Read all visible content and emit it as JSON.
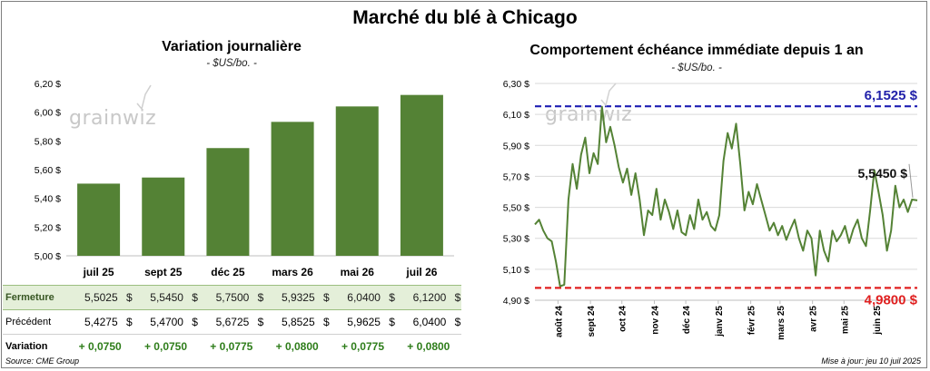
{
  "title": "Marché du blé à Chicago",
  "left_panel": {
    "title": "Variation journalière",
    "subtitle": "- $US/bo. -",
    "watermark": "grainwiz"
  },
  "right_panel": {
    "title": "Comportement échéance immédiate depuis 1 an",
    "subtitle": "- $US/bo. -",
    "watermark": "grainwiz",
    "high_label": "6,1525 $",
    "low_label": "4,9800 $",
    "last_label": "5,5450 $"
  },
  "table": {
    "labels": [
      "Fermeture",
      "Précédent",
      "Variation"
    ],
    "currency": "$",
    "fermeture": [
      "5,5025",
      "5,5450",
      "5,7500",
      "5,9325",
      "6,0400",
      "6,1200"
    ],
    "precedent": [
      "5,4275",
      "5,4700",
      "5,6725",
      "5,8525",
      "5,9625",
      "6,0400"
    ],
    "variation": [
      "+ 0,0750",
      "+ 0,0750",
      "+ 0,0775",
      "+ 0,0800",
      "+ 0,0775",
      "+ 0,0800"
    ]
  },
  "footer": {
    "source": "Source: CME Group",
    "updated": "Mise à jour: jeu 10 juil 2025"
  },
  "colors": {
    "bar": "#548235",
    "line": "#548235",
    "high_line": "#1f1fb4",
    "low_line": "#e02020",
    "high_text": "#2222aa",
    "low_text": "#e02020"
  },
  "chart_data": [
    {
      "type": "bar",
      "title": "Variation journalière",
      "subtitle": "- $US/bo. -",
      "categories": [
        "juil 25",
        "sept 25",
        "déc 25",
        "mars 26",
        "mai 26",
        "juil 26"
      ],
      "values": [
        5.5025,
        5.545,
        5.75,
        5.9325,
        6.04,
        6.12
      ],
      "ylim": [
        5.0,
        6.2
      ],
      "yticks": [
        5.0,
        5.2,
        5.4,
        5.6,
        5.8,
        6.0,
        6.2
      ],
      "ytick_labels": [
        "5,00 $",
        "5,20 $",
        "5,40 $",
        "5,60 $",
        "5,80 $",
        "6,00 $",
        "6,20 $"
      ],
      "grid": false
    },
    {
      "type": "line",
      "title": "Comportement échéance immédiate depuis 1 an",
      "subtitle": "- $US/bo. -",
      "ylim": [
        4.9,
        6.3
      ],
      "yticks": [
        4.9,
        5.1,
        5.3,
        5.5,
        5.7,
        5.9,
        6.1,
        6.3
      ],
      "ytick_labels": [
        "4,90 $",
        "5,10 $",
        "5,30 $",
        "5,50 $",
        "5,70 $",
        "5,90 $",
        "6,10 $",
        "6,30 $"
      ],
      "xlim": [
        "2024-07-10",
        "2025-07-10"
      ],
      "xticks": [
        "2024-08-01",
        "2024-09-01",
        "2024-10-01",
        "2024-11-01",
        "2024-12-01",
        "2025-01-01",
        "2025-02-01",
        "2025-03-01",
        "2025-04-01",
        "2025-05-01",
        "2025-06-01"
      ],
      "xtick_labels": [
        "août 24",
        "sept 24",
        "oct 24",
        "nov 24",
        "déc 24",
        "janv 25",
        "févr 25",
        "mars 25",
        "avr 25",
        "mai 25",
        "juin 25"
      ],
      "grid": "horizontal",
      "high": 6.1525,
      "low": 4.98,
      "last": 5.545,
      "x": [
        "2024-07-10",
        "2024-07-14",
        "2024-07-18",
        "2024-07-22",
        "2024-07-26",
        "2024-07-30",
        "2024-08-03",
        "2024-08-07",
        "2024-08-11",
        "2024-08-15",
        "2024-08-19",
        "2024-08-23",
        "2024-08-27",
        "2024-08-31",
        "2024-09-04",
        "2024-09-08",
        "2024-09-12",
        "2024-09-16",
        "2024-09-20",
        "2024-09-24",
        "2024-09-28",
        "2024-10-02",
        "2024-10-06",
        "2024-10-10",
        "2024-10-14",
        "2024-10-18",
        "2024-10-22",
        "2024-10-26",
        "2024-10-30",
        "2024-11-03",
        "2024-11-07",
        "2024-11-11",
        "2024-11-15",
        "2024-11-19",
        "2024-11-23",
        "2024-11-27",
        "2024-12-01",
        "2024-12-05",
        "2024-12-09",
        "2024-12-13",
        "2024-12-17",
        "2024-12-21",
        "2024-12-25",
        "2024-12-29",
        "2025-01-02",
        "2025-01-06",
        "2025-01-10",
        "2025-01-14",
        "2025-01-18",
        "2025-01-22",
        "2025-01-26",
        "2025-01-30",
        "2025-02-03",
        "2025-02-07",
        "2025-02-11",
        "2025-02-15",
        "2025-02-19",
        "2025-02-23",
        "2025-02-27",
        "2025-03-03",
        "2025-03-07",
        "2025-03-11",
        "2025-03-15",
        "2025-03-19",
        "2025-03-23",
        "2025-03-27",
        "2025-03-31",
        "2025-04-04",
        "2025-04-08",
        "2025-04-12",
        "2025-04-16",
        "2025-04-20",
        "2025-04-24",
        "2025-04-28",
        "2025-05-02",
        "2025-05-06",
        "2025-05-10",
        "2025-05-14",
        "2025-05-18",
        "2025-05-22",
        "2025-05-26",
        "2025-05-30",
        "2025-06-03",
        "2025-06-07",
        "2025-06-11",
        "2025-06-15",
        "2025-06-19",
        "2025-06-23",
        "2025-06-27",
        "2025-07-01",
        "2025-07-05",
        "2025-07-10"
      ],
      "y": [
        5.39,
        5.42,
        5.35,
        5.3,
        5.28,
        5.15,
        4.99,
        5.0,
        5.55,
        5.78,
        5.62,
        5.84,
        5.95,
        5.72,
        5.85,
        5.78,
        6.15,
        5.92,
        6.02,
        5.9,
        5.76,
        5.66,
        5.75,
        5.58,
        5.72,
        5.55,
        5.32,
        5.48,
        5.45,
        5.62,
        5.42,
        5.55,
        5.47,
        5.36,
        5.48,
        5.34,
        5.32,
        5.45,
        5.36,
        5.55,
        5.42,
        5.47,
        5.38,
        5.35,
        5.45,
        5.8,
        5.98,
        5.88,
        6.04,
        5.78,
        5.48,
        5.6,
        5.52,
        5.65,
        5.55,
        5.45,
        5.35,
        5.4,
        5.32,
        5.38,
        5.29,
        5.36,
        5.42,
        5.3,
        5.22,
        5.35,
        5.3,
        5.06,
        5.35,
        5.22,
        5.15,
        5.35,
        5.28,
        5.32,
        5.38,
        5.27,
        5.36,
        5.42,
        5.3,
        5.25,
        5.48,
        5.74,
        5.6,
        5.45,
        5.22,
        5.35,
        5.64,
        5.5,
        5.55,
        5.47,
        5.55,
        5.545
      ]
    }
  ]
}
